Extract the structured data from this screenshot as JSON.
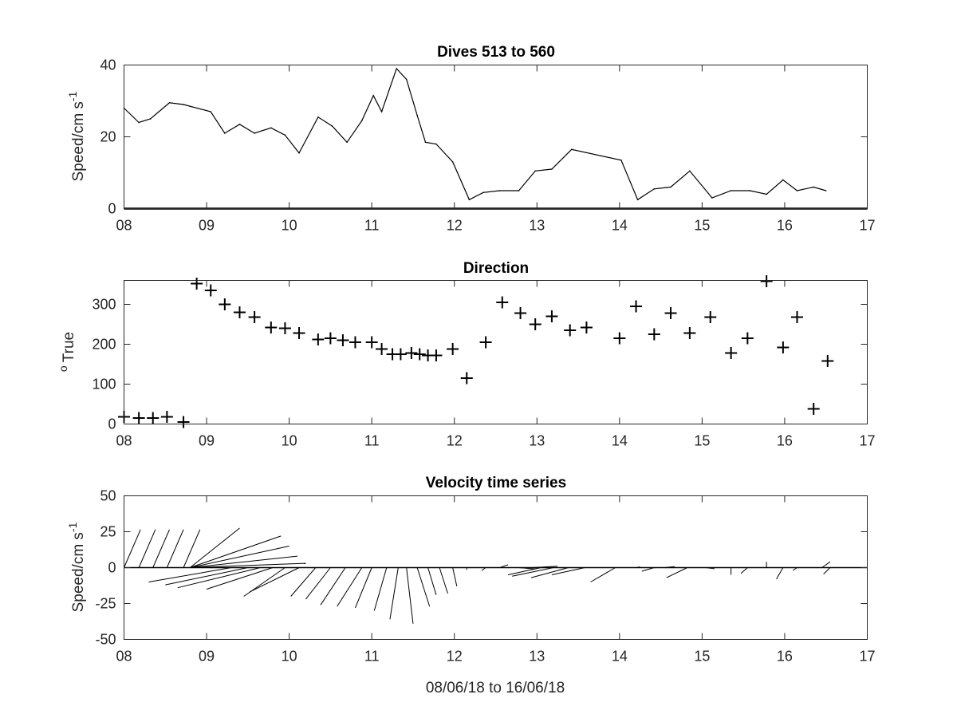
{
  "chart_data": [
    {
      "type": "line",
      "title": "Dives 513 to 560",
      "xlabel": "",
      "ylabel": "Speed/cm s",
      "ylabel_superscript": "-1",
      "xlim": [
        8,
        17
      ],
      "ylim": [
        0,
        40
      ],
      "xticks": [
        "08",
        "09",
        "10",
        "11",
        "12",
        "13",
        "14",
        "15",
        "16",
        "17"
      ],
      "yticks": [
        "0",
        "20",
        "40"
      ],
      "zero_line": true,
      "grid": false,
      "series": [
        {
          "x": [
            8.0,
            8.18,
            8.32,
            8.55,
            8.72,
            9.05,
            9.22,
            9.4,
            9.58,
            9.78,
            9.95,
            10.12,
            10.35,
            10.52,
            10.7,
            10.88,
            11.02,
            11.12,
            11.3,
            11.42,
            11.55,
            11.65,
            11.78,
            11.98,
            12.18,
            12.35,
            12.55,
            12.78,
            12.98,
            13.18,
            13.42,
            14.02,
            14.22,
            14.42,
            14.62,
            14.85,
            15.12,
            15.35,
            15.58,
            15.78,
            15.98,
            16.15,
            16.35,
            16.5
          ],
          "values": [
            28,
            24,
            25,
            29.5,
            29,
            27,
            21,
            23.5,
            21,
            22.5,
            20.5,
            15.5,
            25.5,
            23,
            18.5,
            24.5,
            31.5,
            27,
            39,
            36,
            26,
            18.5,
            18,
            13,
            2.5,
            4.5,
            5,
            5,
            10.5,
            11,
            16.5,
            13.5,
            2.5,
            5.5,
            6,
            10.5,
            3,
            5,
            5,
            4,
            8,
            5,
            6,
            5
          ]
        }
      ]
    },
    {
      "type": "scatter",
      "title": "Direction",
      "xlabel": "",
      "ylabel": "True",
      "ylabel_prefix": "o",
      "xlim": [
        8,
        17
      ],
      "ylim": [
        0,
        360
      ],
      "xticks": [
        "08",
        "09",
        "10",
        "11",
        "12",
        "13",
        "14",
        "15",
        "16",
        "17"
      ],
      "yticks": [
        "0",
        "100",
        "200",
        "300"
      ],
      "marker": "+",
      "grid": false,
      "series": [
        {
          "x": [
            8.0,
            8.18,
            8.35,
            8.52,
            8.72,
            8.88,
            9.05,
            9.22,
            9.4,
            9.58,
            9.78,
            9.95,
            10.12,
            10.35,
            10.5,
            10.65,
            10.8,
            11.0,
            11.12,
            11.25,
            11.35,
            11.48,
            11.58,
            11.68,
            11.78,
            11.98,
            12.15,
            12.38,
            12.58,
            12.8,
            12.98,
            13.18,
            13.4,
            13.6,
            14.0,
            14.2,
            14.42,
            14.62,
            14.85,
            15.1,
            15.35,
            15.55,
            15.78,
            15.98,
            16.15,
            16.35,
            16.52
          ],
          "values": [
            18,
            15,
            15,
            18,
            5,
            352,
            335,
            300,
            280,
            268,
            242,
            240,
            228,
            212,
            215,
            210,
            205,
            205,
            188,
            175,
            175,
            178,
            175,
            172,
            172,
            188,
            115,
            205,
            305,
            278,
            250,
            270,
            235,
            242,
            215,
            295,
            225,
            278,
            228,
            268,
            178,
            215,
            358,
            192,
            268,
            38,
            158
          ]
        }
      ]
    },
    {
      "type": "vector",
      "title": "Velocity time series",
      "xlabel": "08/06/18 to 16/06/18",
      "ylabel": "Speed/cm s",
      "ylabel_superscript": "-1",
      "xlim": [
        8,
        17
      ],
      "ylim": [
        -50,
        50
      ],
      "xticks": [
        "08",
        "09",
        "10",
        "11",
        "12",
        "13",
        "14",
        "15",
        "16",
        "17"
      ],
      "yticks": [
        "50",
        "25",
        "0",
        "-25",
        "-50"
      ],
      "zero_line": true,
      "grid": false,
      "vectors": [
        {
          "t": 8.0,
          "u": 0.2,
          "v": 26.5
        },
        {
          "t": 8.18,
          "u": 0.2,
          "v": 26.5
        },
        {
          "t": 8.35,
          "u": 0.2,
          "v": 26.5
        },
        {
          "t": 8.52,
          "u": 0.2,
          "v": 26.5
        },
        {
          "t": 8.72,
          "u": 0.2,
          "v": 26.5
        },
        {
          "t": 8.8,
          "u": 0.6,
          "v": 27.5
        },
        {
          "t": 8.8,
          "u": 1.1,
          "v": 22
        },
        {
          "t": 8.8,
          "u": 1.2,
          "v": 15
        },
        {
          "t": 8.8,
          "u": 1.3,
          "v": 8
        },
        {
          "t": 8.8,
          "u": 1.4,
          "v": 3
        },
        {
          "t": 9.3,
          "u": -1.0,
          "v": -10
        },
        {
          "t": 9.5,
          "u": -1.0,
          "v": -12
        },
        {
          "t": 9.65,
          "u": -1.0,
          "v": -14
        },
        {
          "t": 9.8,
          "u": -0.8,
          "v": -15
        },
        {
          "t": 9.95,
          "u": -0.5,
          "v": -20
        },
        {
          "t": 10.12,
          "u": -0.6,
          "v": -17
        },
        {
          "t": 10.32,
          "u": -0.3,
          "v": -20
        },
        {
          "t": 10.5,
          "u": -0.3,
          "v": -22
        },
        {
          "t": 10.68,
          "u": -0.3,
          "v": -26
        },
        {
          "t": 10.88,
          "u": -0.3,
          "v": -27
        },
        {
          "t": 11.0,
          "u": -0.2,
          "v": -28
        },
        {
          "t": 11.18,
          "u": -0.15,
          "v": -30
        },
        {
          "t": 11.32,
          "u": -0.1,
          "v": -36
        },
        {
          "t": 11.42,
          "u": 0.08,
          "v": -39
        },
        {
          "t": 11.55,
          "u": 0.15,
          "v": -27
        },
        {
          "t": 11.68,
          "u": 0.1,
          "v": -19
        },
        {
          "t": 11.82,
          "u": 0.1,
          "v": -18
        },
        {
          "t": 11.98,
          "u": 0.05,
          "v": -13
        },
        {
          "t": 12.15,
          "u": 0.0,
          "v": -1.5
        },
        {
          "t": 12.38,
          "u": -0.05,
          "v": -2
        },
        {
          "t": 12.55,
          "u": 0.1,
          "v": 2
        },
        {
          "t": 12.78,
          "u": 0.2,
          "v": -1
        },
        {
          "t": 12.95,
          "u": 0.3,
          "v": 1
        },
        {
          "t": 13.05,
          "u": -0.4,
          "v": -5
        },
        {
          "t": 13.2,
          "u": -0.5,
          "v": -6
        },
        {
          "t": 13.38,
          "u": -0.45,
          "v": -7
        },
        {
          "t": 13.58,
          "u": -0.4,
          "v": -5
        },
        {
          "t": 13.95,
          "u": -0.3,
          "v": -10
        },
        {
          "t": 14.2,
          "u": 0.05,
          "v": 0.5
        },
        {
          "t": 14.42,
          "u": -0.15,
          "v": -2.5
        },
        {
          "t": 14.55,
          "u": 0.12,
          "v": 0.8
        },
        {
          "t": 14.82,
          "u": -0.25,
          "v": -7
        },
        {
          "t": 15.05,
          "u": 0.1,
          "v": -0.8
        },
        {
          "t": 15.35,
          "u": 0.0,
          "v": -5
        },
        {
          "t": 15.55,
          "u": -0.08,
          "v": -4
        },
        {
          "t": 15.78,
          "u": 0.0,
          "v": 4
        },
        {
          "t": 15.98,
          "u": -0.08,
          "v": -8
        },
        {
          "t": 16.15,
          "u": -0.05,
          "v": -2
        },
        {
          "t": 16.45,
          "u": 0.1,
          "v": 4
        },
        {
          "t": 16.55,
          "u": -0.08,
          "v": -4.5
        }
      ]
    }
  ]
}
